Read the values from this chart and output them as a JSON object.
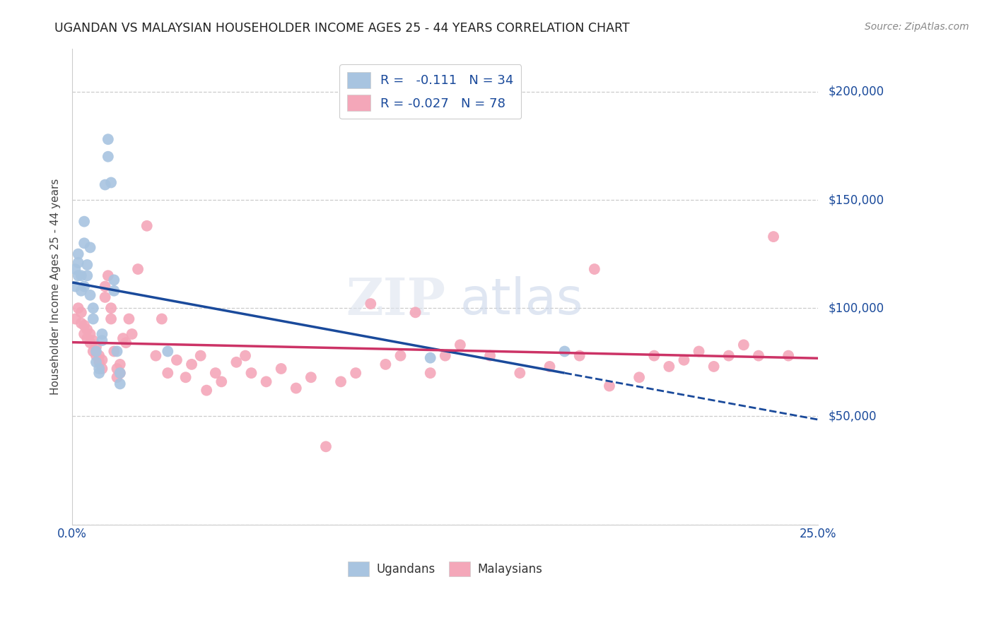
{
  "title": "UGANDAN VS MALAYSIAN HOUSEHOLDER INCOME AGES 25 - 44 YEARS CORRELATION CHART",
  "source": "Source: ZipAtlas.com",
  "ylabel": "Householder Income Ages 25 - 44 years",
  "legend_ugandan": "Ugandans",
  "legend_malaysian": "Malaysians",
  "r_ugandan": "-0.111",
  "n_ugandan": "34",
  "r_malaysian": "-0.027",
  "n_malaysian": "78",
  "ugandan_color": "#a8c4e0",
  "malaysian_color": "#f4a7b9",
  "trend_ugandan_color": "#1a4a9b",
  "trend_malaysian_color": "#cc3366",
  "xlim": [
    0.0,
    0.25
  ],
  "ylim": [
    0,
    220000
  ],
  "yticks": [
    0,
    50000,
    100000,
    150000,
    200000
  ],
  "ytick_labels": [
    "",
    "$50,000",
    "$100,000",
    "$150,000",
    "$200,000"
  ],
  "ugandan_x": [
    0.001,
    0.001,
    0.002,
    0.002,
    0.002,
    0.003,
    0.003,
    0.004,
    0.004,
    0.004,
    0.005,
    0.005,
    0.006,
    0.006,
    0.007,
    0.007,
    0.008,
    0.008,
    0.009,
    0.009,
    0.01,
    0.01,
    0.011,
    0.012,
    0.012,
    0.013,
    0.014,
    0.014,
    0.015,
    0.016,
    0.016,
    0.032,
    0.12,
    0.165
  ],
  "ugandan_y": [
    110000,
    118000,
    125000,
    115000,
    121000,
    115000,
    108000,
    140000,
    130000,
    110000,
    120000,
    115000,
    128000,
    106000,
    95000,
    100000,
    75000,
    80000,
    70000,
    72000,
    85000,
    88000,
    157000,
    170000,
    178000,
    158000,
    108000,
    113000,
    80000,
    70000,
    65000,
    80000,
    77000,
    80000
  ],
  "malaysian_x": [
    0.001,
    0.002,
    0.003,
    0.003,
    0.004,
    0.004,
    0.005,
    0.005,
    0.006,
    0.006,
    0.007,
    0.007,
    0.008,
    0.008,
    0.009,
    0.009,
    0.01,
    0.01,
    0.011,
    0.011,
    0.012,
    0.013,
    0.013,
    0.014,
    0.015,
    0.015,
    0.016,
    0.016,
    0.017,
    0.018,
    0.019,
    0.02,
    0.022,
    0.025,
    0.028,
    0.03,
    0.032,
    0.035,
    0.038,
    0.04,
    0.043,
    0.045,
    0.048,
    0.05,
    0.055,
    0.058,
    0.06,
    0.065,
    0.07,
    0.075,
    0.08,
    0.085,
    0.09,
    0.095,
    0.1,
    0.105,
    0.11,
    0.115,
    0.12,
    0.125,
    0.13,
    0.14,
    0.15,
    0.16,
    0.17,
    0.175,
    0.18,
    0.19,
    0.195,
    0.2,
    0.205,
    0.21,
    0.215,
    0.22,
    0.225,
    0.23,
    0.235,
    0.24
  ],
  "malaysian_y": [
    95000,
    100000,
    98000,
    93000,
    92000,
    88000,
    90000,
    86000,
    88000,
    84000,
    85000,
    80000,
    78000,
    82000,
    75000,
    78000,
    72000,
    76000,
    110000,
    105000,
    115000,
    100000,
    95000,
    80000,
    72000,
    68000,
    74000,
    70000,
    86000,
    84000,
    95000,
    88000,
    118000,
    138000,
    78000,
    95000,
    70000,
    76000,
    68000,
    74000,
    78000,
    62000,
    70000,
    66000,
    75000,
    78000,
    70000,
    66000,
    72000,
    63000,
    68000,
    36000,
    66000,
    70000,
    102000,
    74000,
    78000,
    98000,
    70000,
    78000,
    83000,
    78000,
    70000,
    73000,
    78000,
    118000,
    64000,
    68000,
    78000,
    73000,
    76000,
    80000,
    73000,
    78000,
    83000,
    78000,
    133000,
    78000
  ]
}
